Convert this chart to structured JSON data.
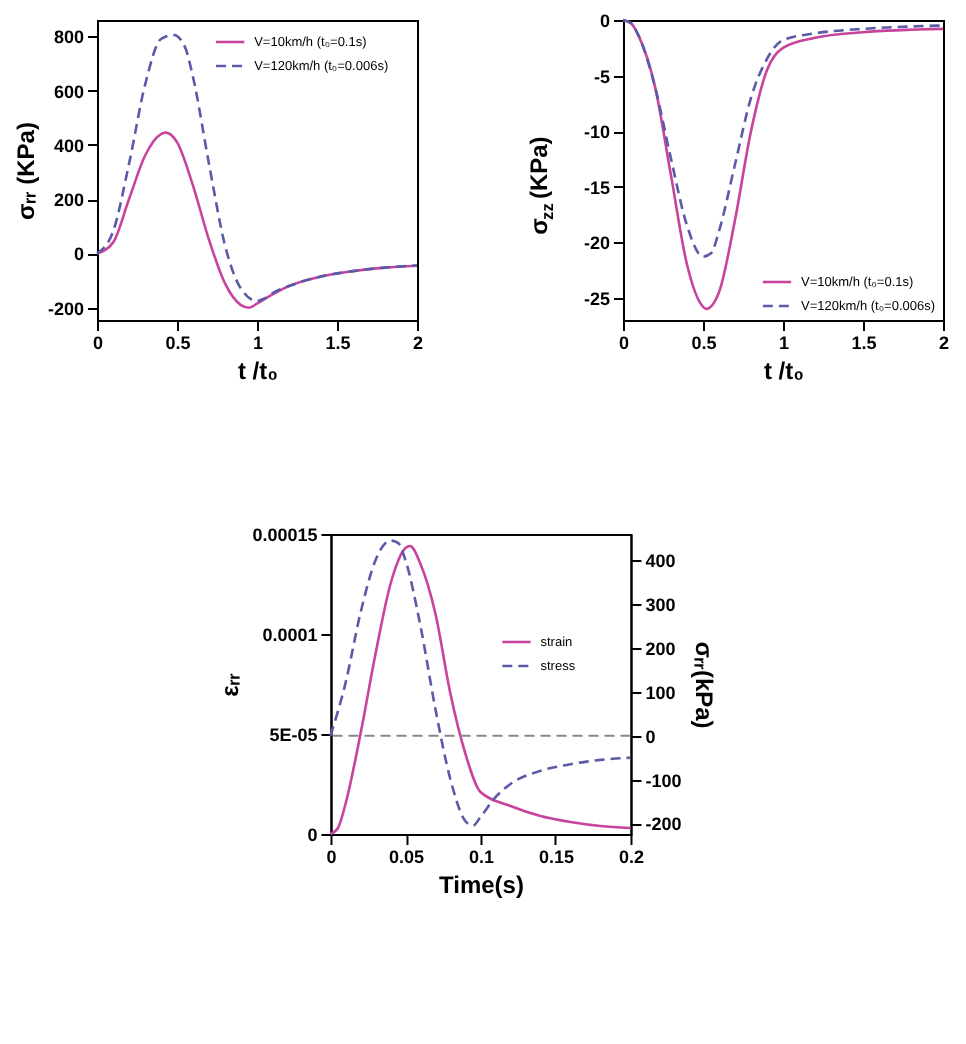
{
  "chart_data": [
    {
      "type": "line",
      "xlabel": "t /t₀",
      "ylabel": "σᵣᵣ (KPa)",
      "xlim": [
        0,
        2
      ],
      "ylim": [
        -245,
        860
      ],
      "xticks": [
        0,
        0.5,
        1,
        1.5,
        2
      ],
      "yticks": [
        -200,
        0,
        200,
        400,
        600,
        800
      ],
      "grid": false,
      "legend": "top right",
      "series": [
        {
          "name": "V=10km/h (t₀=0.1s)",
          "color": "#c8449c",
          "line_style": "solid",
          "x": [
            0,
            0.1,
            0.2,
            0.3,
            0.4,
            0.43,
            0.5,
            0.6,
            0.7,
            0.8,
            0.9,
            0.95,
            1.0,
            1.1,
            1.2,
            1.4,
            1.6,
            1.8,
            2.0
          ],
          "values": [
            0,
            40,
            200,
            360,
            440,
            445,
            410,
            250,
            50,
            -110,
            -190,
            -200,
            -185,
            -150,
            -120,
            -85,
            -65,
            -52,
            -45
          ]
        },
        {
          "name": "V=120km/h (t₀=0.006s)",
          "color": "#5a5aa8",
          "line_style": "dashed",
          "x": [
            0,
            0.1,
            0.2,
            0.3,
            0.4,
            0.48,
            0.55,
            0.6,
            0.7,
            0.8,
            0.9,
            1.0,
            1.05,
            1.1,
            1.2,
            1.4,
            1.6,
            1.8,
            2.0
          ],
          "values": [
            0,
            80,
            330,
            620,
            790,
            805,
            760,
            650,
            330,
            30,
            -130,
            -175,
            -165,
            -145,
            -120,
            -85,
            -65,
            -52,
            -44
          ]
        }
      ]
    },
    {
      "type": "line",
      "xlabel": "t /t₀",
      "ylabel": "σ$_{zz}$ (KPa)",
      "xlim": [
        0,
        2
      ],
      "ylim": [
        -27,
        0
      ],
      "xticks": [
        0,
        0.5,
        1,
        1.5,
        2
      ],
      "yticks": [
        -25,
        -20,
        -15,
        -10,
        -5,
        0
      ],
      "grid": false,
      "legend": "bottom right",
      "series": [
        {
          "name": "V=10km/h (t₀=0.1s)",
          "color": "#c8449c",
          "line_style": "solid",
          "x": [
            0,
            0.05,
            0.1,
            0.2,
            0.3,
            0.4,
            0.5,
            0.52,
            0.6,
            0.7,
            0.8,
            0.9,
            1.0,
            1.2,
            1.5,
            2.0
          ],
          "values": [
            0,
            -0.3,
            -1.5,
            -6,
            -14,
            -22,
            -25.8,
            -26,
            -24.5,
            -18,
            -10,
            -4.5,
            -2.5,
            -1.6,
            -1.1,
            -0.8
          ]
        },
        {
          "name": "V=120km/h (t₀=0.006s)",
          "color": "#5a5aa8",
          "line_style": "dashed",
          "x": [
            0,
            0.05,
            0.1,
            0.2,
            0.3,
            0.4,
            0.5,
            0.55,
            0.6,
            0.7,
            0.8,
            0.9,
            1.0,
            1.2,
            1.5,
            2.0
          ],
          "values": [
            0,
            -0.3,
            -1.5,
            -6,
            -12.5,
            -18.5,
            -21.3,
            -21,
            -19,
            -13,
            -7,
            -3.5,
            -1.8,
            -1.2,
            -0.8,
            -0.5
          ]
        }
      ]
    },
    {
      "type": "line",
      "xlabel": "Time(s)",
      "ylabel": "εᵣᵣ",
      "y2label": "σᵣᵣ(kPa)",
      "xlim": [
        0,
        0.2
      ],
      "ylim": [
        0,
        0.00015
      ],
      "y2lim": [
        -224,
        460
      ],
      "xticks": [
        0,
        0.05,
        0.1,
        0.15,
        0.2
      ],
      "yticks": [
        0,
        {
          "value": 5e-05,
          "label": "5E-05"
        },
        0.0001,
        0.00015
      ],
      "y2ticks": [
        -200,
        -100,
        0,
        100,
        200,
        300,
        400
      ],
      "grid": false,
      "legend": "right",
      "ref_lines": [
        {
          "axis": "y2",
          "value": 0,
          "color": "#888888",
          "line_style": "dashed"
        }
      ],
      "series": [
        {
          "name": "strain",
          "color": "#c8449c",
          "line_style": "solid",
          "x": [
            0,
            0.005,
            0.01,
            0.02,
            0.03,
            0.04,
            0.05,
            0.053,
            0.06,
            0.07,
            0.08,
            0.09,
            0.1,
            0.12,
            0.14,
            0.16,
            0.18,
            0.2
          ],
          "values": [
            0,
            3e-06,
            1.5e-05,
            5e-05,
            9e-05,
            0.000125,
            0.000143,
            0.000144,
            0.000135,
            0.00011,
            7e-05,
            4e-05,
            2.1e-05,
            1.4e-05,
            9e-06,
            6e-06,
            4e-06,
            3e-06
          ]
        },
        {
          "name": "stress",
          "color": "#5a5aa8",
          "line_style": "dashed",
          "axis": "y2",
          "x": [
            0,
            0.01,
            0.02,
            0.03,
            0.04,
            0.045,
            0.05,
            0.06,
            0.07,
            0.08,
            0.09,
            0.095,
            0.1,
            0.11,
            0.12,
            0.14,
            0.16,
            0.18,
            0.2
          ],
          "values": [
            0,
            120,
            280,
            400,
            445,
            440,
            400,
            250,
            60,
            -100,
            -195,
            -205,
            -185,
            -140,
            -110,
            -80,
            -65,
            -55,
            -50
          ]
        }
      ]
    }
  ]
}
